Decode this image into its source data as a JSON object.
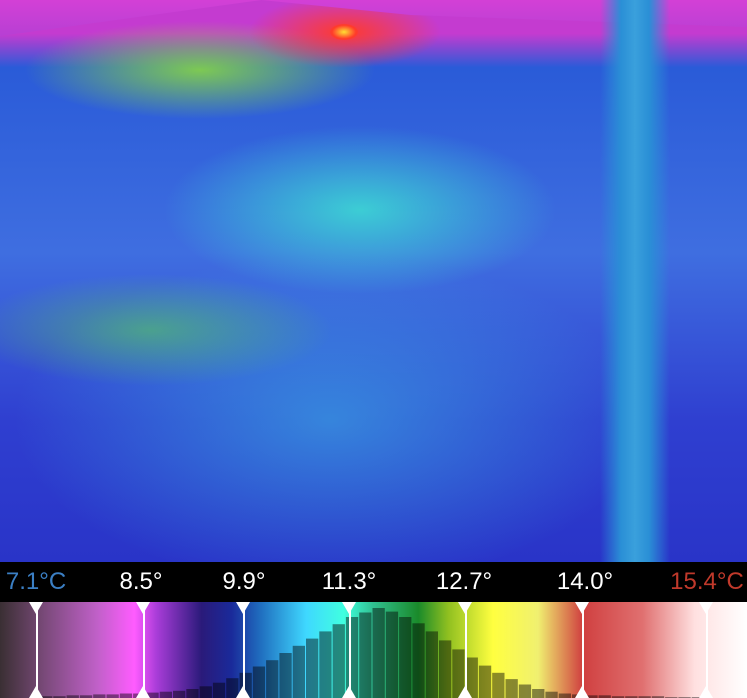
{
  "thermal_view": {
    "colors": {
      "background_low": "#2934c8",
      "mid": "#3f6ee0",
      "warm": "#8cdc3c",
      "hot": "#ff3b2b",
      "ridge": "#c43bd0"
    }
  },
  "scale": {
    "min_label": "7.1°C",
    "max_label": "15.4°C",
    "ticks": [
      "8.5°",
      "9.9°",
      "11.3°",
      "12.7°",
      "14.0°"
    ],
    "min_color": "#3b7fc4",
    "max_color": "#c0392b"
  },
  "histogram": {
    "values": [
      0.02,
      0.02,
      0.03,
      0.03,
      0.04,
      0.04,
      0.05,
      0.05,
      0.06,
      0.07,
      0.08,
      0.1,
      0.13,
      0.17,
      0.22,
      0.28,
      0.35,
      0.42,
      0.5,
      0.58,
      0.66,
      0.74,
      0.82,
      0.9,
      0.95,
      1.0,
      0.96,
      0.9,
      0.83,
      0.74,
      0.64,
      0.54,
      0.45,
      0.36,
      0.28,
      0.21,
      0.15,
      0.1,
      0.07,
      0.05,
      0.04,
      0.03,
      0.03,
      0.02,
      0.02,
      0.02,
      0.02,
      0.01,
      0.01,
      0.01
    ]
  }
}
